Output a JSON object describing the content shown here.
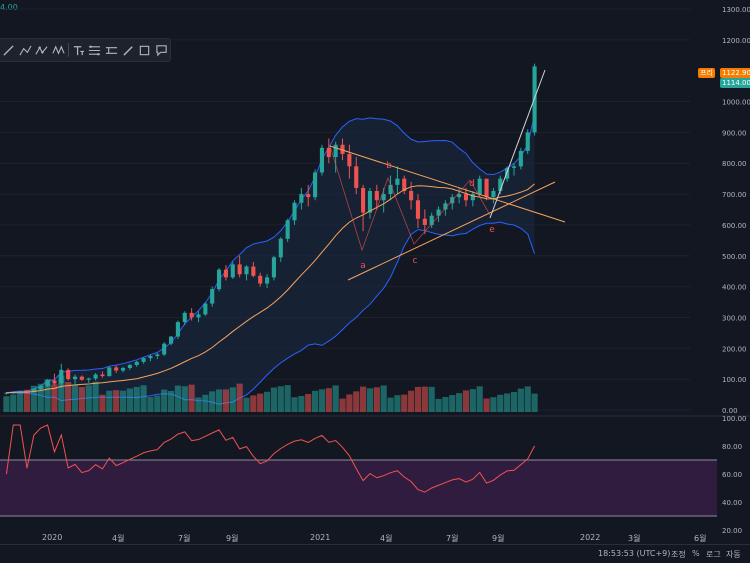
{
  "top_value": "4.00",
  "toolbar_icons": [
    "line-tool-icon",
    "path-tool-icon",
    "pattern-tool-icon",
    "zigzag-tool-icon",
    "text-tool-icon",
    "fib-tool-icon",
    "measure-tool-icon",
    "brush-tool-icon",
    "shape-tool-icon",
    "note-tool-icon"
  ],
  "price_axis": [
    "1300.00",
    "1200.00",
    "1000.00",
    "900.00",
    "800.00",
    "700.00",
    "600.00",
    "500.00",
    "400.00",
    "300.00",
    "200.00",
    "100.00",
    "0.00"
  ],
  "rsi_axis": [
    "100.00",
    "80.00",
    "60.00",
    "40.00",
    "20.00"
  ],
  "price_badges": {
    "label": "프리",
    "upper": "1122.90",
    "lower": "1114.00"
  },
  "wave_labels": [
    "a",
    "b",
    "c",
    "d",
    "e"
  ],
  "time_axis": [
    "2020",
    "4월",
    "7월",
    "9월",
    "2021",
    "4월",
    "7월",
    "9월",
    "2022",
    "3월",
    "6월"
  ],
  "status_bar": {
    "clock": "18:53:53 (UTC+9)",
    "adjust": "조정",
    "percent": "%",
    "log": "로그",
    "auto": "자동"
  },
  "colors": {
    "up": "#26a69a",
    "down": "#ef5350",
    "bands": "#2962ff",
    "ma": "#f7a35c",
    "rsi": "#ef5350",
    "rsi_fill": "#3d1f4a"
  },
  "chart_data": {
    "type": "candlestick",
    "ylim": [
      0,
      1300
    ],
    "volume_ylim": [
      0,
      1
    ],
    "rsi_ylim": [
      20,
      100
    ],
    "rsi_levels": [
      70,
      30
    ],
    "candles": [
      [
        55,
        58,
        50,
        56
      ],
      [
        56,
        60,
        52,
        58
      ],
      [
        58,
        62,
        54,
        60
      ],
      [
        60,
        64,
        55,
        58
      ],
      [
        58,
        70,
        56,
        68
      ],
      [
        68,
        80,
        64,
        78
      ],
      [
        78,
        100,
        74,
        96
      ],
      [
        96,
        118,
        80,
        86
      ],
      [
        86,
        150,
        70,
        130
      ],
      [
        130,
        135,
        95,
        100
      ],
      [
        100,
        115,
        85,
        108
      ],
      [
        108,
        112,
        95,
        98
      ],
      [
        98,
        105,
        88,
        102
      ],
      [
        102,
        120,
        96,
        115
      ],
      [
        115,
        125,
        105,
        110
      ],
      [
        110,
        140,
        108,
        138
      ],
      [
        138,
        145,
        120,
        128
      ],
      [
        128,
        140,
        122,
        136
      ],
      [
        136,
        150,
        130,
        146
      ],
      [
        146,
        160,
        140,
        156
      ],
      [
        156,
        170,
        150,
        168
      ],
      [
        168,
        180,
        158,
        175
      ],
      [
        175,
        185,
        165,
        180
      ],
      [
        180,
        220,
        175,
        215
      ],
      [
        215,
        240,
        210,
        238
      ],
      [
        238,
        290,
        230,
        285
      ],
      [
        285,
        320,
        275,
        315
      ],
      [
        315,
        330,
        290,
        300
      ],
      [
        300,
        320,
        285,
        310
      ],
      [
        310,
        350,
        305,
        345
      ],
      [
        345,
        400,
        335,
        392
      ],
      [
        392,
        460,
        385,
        455
      ],
      [
        455,
        470,
        420,
        430
      ],
      [
        430,
        480,
        425,
        472
      ],
      [
        472,
        500,
        430,
        440
      ],
      [
        440,
        470,
        420,
        465
      ],
      [
        465,
        480,
        430,
        435
      ],
      [
        435,
        445,
        400,
        410
      ],
      [
        410,
        440,
        395,
        430
      ],
      [
        430,
        500,
        420,
        495
      ],
      [
        495,
        560,
        480,
        555
      ],
      [
        555,
        620,
        545,
        615
      ],
      [
        615,
        680,
        600,
        672
      ],
      [
        672,
        720,
        650,
        700
      ],
      [
        700,
        730,
        660,
        690
      ],
      [
        690,
        780,
        680,
        770
      ],
      [
        770,
        860,
        760,
        850
      ],
      [
        850,
        880,
        800,
        820
      ],
      [
        820,
        870,
        770,
        860
      ],
      [
        860,
        880,
        810,
        830
      ],
      [
        830,
        860,
        750,
        790
      ],
      [
        790,
        820,
        700,
        720
      ],
      [
        720,
        730,
        580,
        640
      ],
      [
        640,
        720,
        620,
        710
      ],
      [
        710,
        730,
        650,
        680
      ],
      [
        680,
        720,
        640,
        700
      ],
      [
        700,
        760,
        680,
        730
      ],
      [
        730,
        790,
        700,
        750
      ],
      [
        750,
        760,
        700,
        710
      ],
      [
        710,
        740,
        650,
        680
      ],
      [
        680,
        700,
        590,
        620
      ],
      [
        620,
        650,
        570,
        600
      ],
      [
        600,
        640,
        590,
        630
      ],
      [
        630,
        660,
        610,
        650
      ],
      [
        650,
        680,
        630,
        670
      ],
      [
        670,
        700,
        650,
        690
      ],
      [
        690,
        720,
        670,
        700
      ],
      [
        700,
        720,
        660,
        680
      ],
      [
        680,
        710,
        660,
        700
      ],
      [
        700,
        760,
        690,
        750
      ],
      [
        750,
        740,
        680,
        690
      ],
      [
        690,
        720,
        670,
        710
      ],
      [
        710,
        760,
        700,
        750
      ],
      [
        750,
        790,
        740,
        785
      ],
      [
        785,
        800,
        760,
        790
      ],
      [
        790,
        850,
        780,
        840
      ],
      [
        840,
        910,
        830,
        900
      ],
      [
        900,
        1122.9,
        890,
        1114
      ]
    ]
  }
}
